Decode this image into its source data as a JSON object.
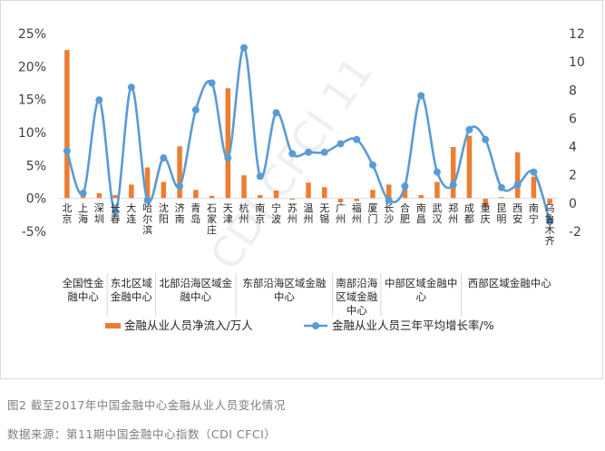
{
  "caption": "图2 截至2017年中国金融中心金融从业人员变化情况",
  "source": "数据来源：第11期中国金融中心指数（CDI CFCI）",
  "watermark": "CDI CFCI 11",
  "chart_data": {
    "type": "bar+line",
    "categories": [
      "北京",
      "上海",
      "深圳",
      "长春",
      "大连",
      "哈尔滨",
      "沈阳",
      "济南",
      "青岛",
      "石家庄",
      "天津",
      "杭州",
      "南京",
      "宁波",
      "苏州",
      "温州",
      "无锡",
      "广州",
      "福州",
      "厦门",
      "长沙",
      "合肥",
      "南昌",
      "武汉",
      "郑州",
      "成都",
      "重庆",
      "昆明",
      "西安",
      "南宁",
      "乌鲁木齐"
    ],
    "groups": [
      {
        "label": "全国性金融中心",
        "from": 0,
        "to": 2
      },
      {
        "label": "东北区域金融中心",
        "from": 3,
        "to": 5
      },
      {
        "label": "北部沿海区域金融中心",
        "from": 6,
        "to": 10
      },
      {
        "label": "东部沿海区域金融中心",
        "from": 11,
        "to": 16
      },
      {
        "label": "南部沿海区域金融中心",
        "from": 17,
        "to": 19
      },
      {
        "label": "中部区域金融中心",
        "from": 20,
        "to": 24
      },
      {
        "label": "西部区域金融中心",
        "from": 25,
        "to": 30
      }
    ],
    "series": [
      {
        "name": "金融从业人员净流入/万人",
        "type": "bar",
        "axis": "left",
        "color": "#ED7D31",
        "values": [
          22.5,
          1.2,
          0.8,
          0.5,
          2.1,
          4.7,
          2.5,
          7.9,
          1.3,
          0.4,
          16.7,
          3.5,
          0.5,
          1.2,
          -0.2,
          2.4,
          1.7,
          -0.6,
          -0.4,
          1.3,
          2.1,
          2.0,
          0.5,
          2.5,
          7.8,
          9.5,
          -1.2,
          0.2,
          7.0,
          3.3,
          -0.8
        ]
      },
      {
        "name": "金融从业人员三年平均增长率/%",
        "type": "line",
        "axis": "right",
        "color": "#5B9BD5",
        "values": [
          3.7,
          0.7,
          7.3,
          -0.6,
          8.2,
          0.2,
          3.2,
          1.2,
          6.6,
          8.5,
          3.2,
          11.0,
          1.9,
          6.4,
          3.5,
          3.6,
          3.6,
          4.2,
          4.5,
          2.7,
          0.2,
          1.2,
          7.6,
          2.2,
          1.3,
          5.2,
          4.5,
          1.1,
          1.3,
          2.2,
          -1.3
        ]
      }
    ],
    "y_left": {
      "min": -5,
      "max": 25,
      "ticks": [
        "25%",
        "20%",
        "15%",
        "10%",
        "5%",
        "0%",
        "-5%"
      ],
      "tick_values": [
        25,
        20,
        15,
        10,
        5,
        0,
        -5
      ]
    },
    "y_right": {
      "min": -2,
      "max": 12,
      "ticks": [
        "12",
        "10",
        "8",
        "6",
        "4",
        "2",
        "0",
        "-2"
      ],
      "tick_values": [
        12,
        10,
        8,
        6,
        4,
        2,
        0,
        -2
      ],
      "neg_color": "#C00000"
    },
    "grid": false,
    "legend_position": "bottom"
  }
}
